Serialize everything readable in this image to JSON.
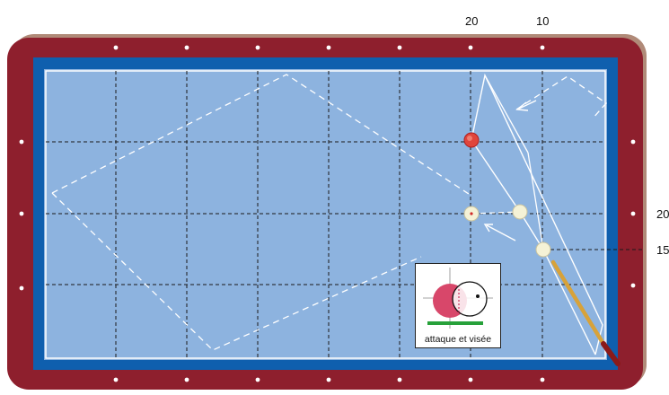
{
  "diagram": {
    "top_labels": [
      "20",
      "10"
    ],
    "right_labels": [
      "20",
      "15"
    ],
    "inset_caption": "attaque et visée",
    "colors": {
      "frame": "#8e1f2d",
      "frame_shadow": "#b08a78",
      "cushion": "#0f5fae",
      "cloth": "#8db3df",
      "line": "#ffffff",
      "grid": "#1a1a1a",
      "red_ball": "#e0453c",
      "cue_ball": "#f5f2d6",
      "cue_stick": "#d7a23a"
    },
    "icons": [
      "diamond-marker",
      "direction-arrow",
      "red-ball",
      "cue-ball",
      "cue-stick"
    ]
  }
}
